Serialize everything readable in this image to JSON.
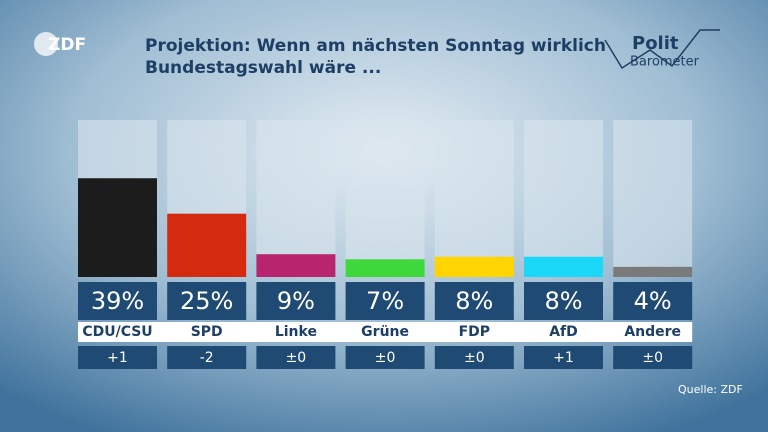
{
  "chart_data": {
    "type": "bar",
    "title": [
      "Projektion: Wenn am nächsten Sonntag wirklich",
      "Bundestagswahl wäre ..."
    ],
    "logo": "ZDF",
    "brand": [
      "Polit",
      "Barometer"
    ],
    "categories": [
      "CDU/CSU",
      "SPD",
      "Linke",
      "Grüne",
      "FDP",
      "AfD",
      "Andere"
    ],
    "values": [
      39,
      25,
      9,
      7,
      8,
      8,
      4
    ],
    "value_labels": [
      "39%",
      "25%",
      "9%",
      "7%",
      "8%",
      "8%",
      "4%"
    ],
    "changes": [
      "+1",
      "-2",
      "±0",
      "±0",
      "±0",
      "+1",
      "±0"
    ],
    "colors": [
      "#1c1c1c",
      "#d42a10",
      "#b8246e",
      "#3ed83a",
      "#ffd500",
      "#1cd8f8",
      "#7a7a7a"
    ],
    "ylim": [
      0,
      62
    ],
    "source": "Quelle: ZDF"
  }
}
